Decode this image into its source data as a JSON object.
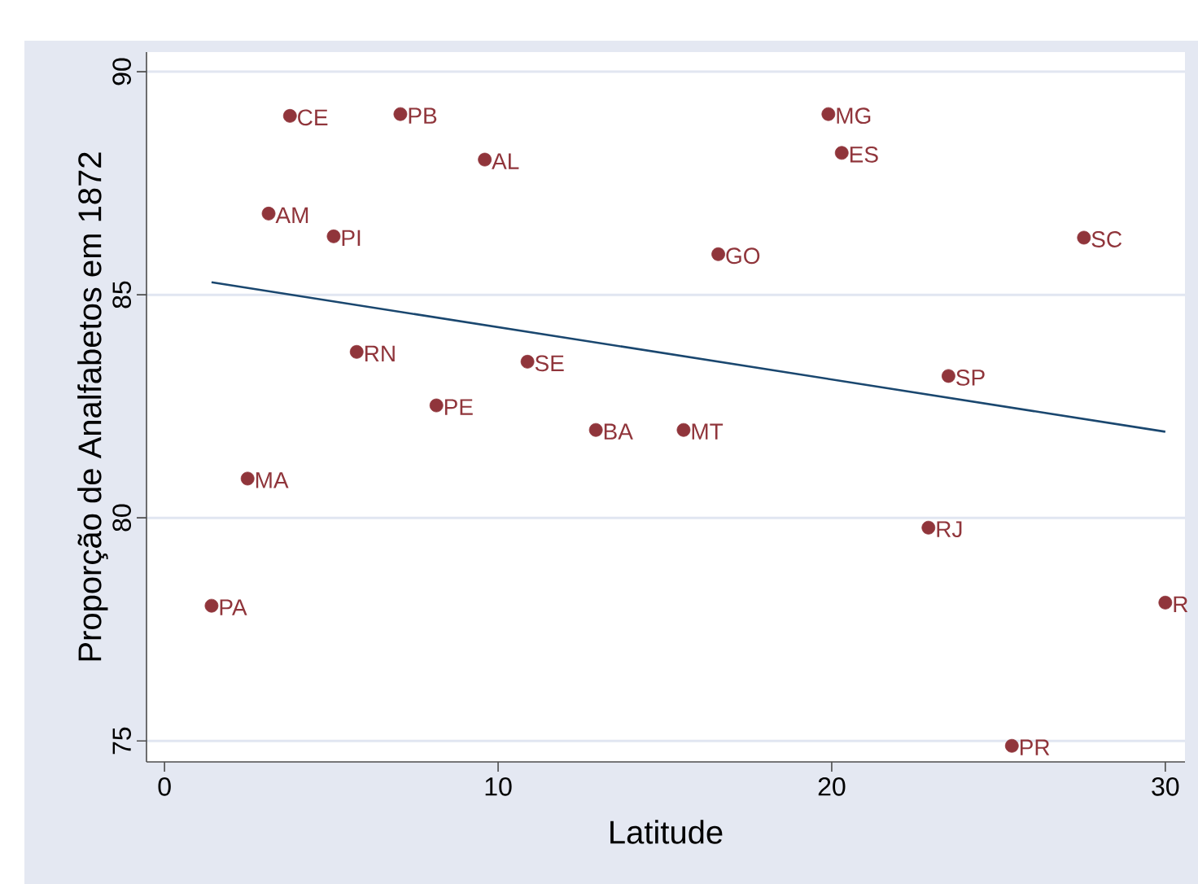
{
  "chart_data": {
    "type": "scatter",
    "xlabel": "Latitude",
    "ylabel": "Proporção de Analfabetos em 1872",
    "xlim": [
      -0.54,
      30.59
    ],
    "ylim": [
      74.53,
      90.44
    ],
    "xticks": [
      0,
      10,
      20,
      30
    ],
    "yticks": [
      75,
      80,
      85,
      90
    ],
    "grid": "y",
    "series": [
      {
        "marker": "circle",
        "color": "#90353b",
        "x": [
          3.76,
          7.07,
          9.6,
          3.12,
          5.07,
          5.76,
          10.88,
          8.15,
          12.93,
          15.56,
          2.49,
          1.41,
          19.9,
          20.3,
          16.6,
          27.56,
          23.5,
          22.9,
          30.0,
          25.4
        ],
        "values": [
          89.01,
          89.05,
          88.03,
          86.82,
          86.31,
          83.72,
          83.5,
          82.52,
          81.97,
          81.97,
          80.88,
          78.03,
          89.05,
          88.18,
          85.91,
          86.28,
          83.18,
          79.78,
          78.1,
          74.89
        ]
      },
      {
        "type": "line",
        "color": "#1a476f",
        "x": [
          1.41,
          30.0
        ],
        "values": [
          85.28,
          81.93
        ]
      }
    ],
    "annotations": [
      {
        "text": "CE",
        "x": 3.76,
        "y": 89.01
      },
      {
        "text": "PB",
        "x": 7.07,
        "y": 89.05
      },
      {
        "text": "AL",
        "x": 9.6,
        "y": 88.03
      },
      {
        "text": "AM",
        "x": 3.12,
        "y": 86.82
      },
      {
        "text": "PI",
        "x": 5.07,
        "y": 86.31
      },
      {
        "text": "RN",
        "x": 5.76,
        "y": 83.72
      },
      {
        "text": "SE",
        "x": 10.88,
        "y": 83.5
      },
      {
        "text": "PE",
        "x": 8.15,
        "y": 82.52
      },
      {
        "text": "BA",
        "x": 12.93,
        "y": 81.97
      },
      {
        "text": "MT",
        "x": 15.56,
        "y": 81.97
      },
      {
        "text": "MA",
        "x": 2.49,
        "y": 80.88
      },
      {
        "text": "PA",
        "x": 1.41,
        "y": 78.03
      },
      {
        "text": "MG",
        "x": 19.9,
        "y": 89.05
      },
      {
        "text": "ES",
        "x": 20.3,
        "y": 88.18
      },
      {
        "text": "GO",
        "x": 16.6,
        "y": 85.91
      },
      {
        "text": "SC",
        "x": 27.56,
        "y": 86.28
      },
      {
        "text": "SP",
        "x": 23.5,
        "y": 83.18
      },
      {
        "text": "RJ",
        "x": 22.9,
        "y": 79.78
      },
      {
        "text": "R",
        "x": 30.0,
        "y": 78.1
      },
      {
        "text": "PR",
        "x": 25.4,
        "y": 74.89
      }
    ]
  }
}
